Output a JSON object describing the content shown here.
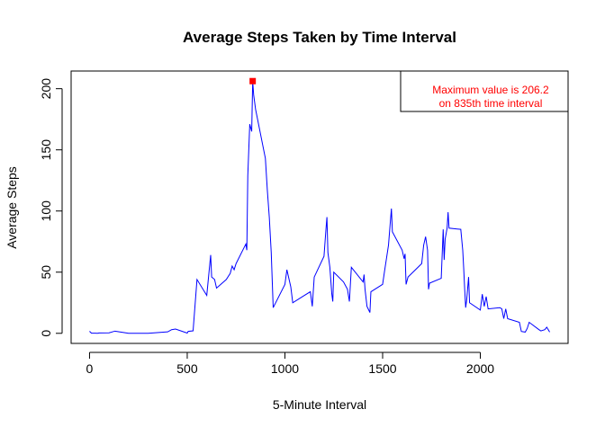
{
  "chart_data": {
    "type": "line",
    "title": "Average Steps Taken by Time Interval",
    "x_label": "5-Minute Interval",
    "y_label": "Average Steps",
    "x": [
      0,
      10,
      20,
      30,
      40,
      50,
      100,
      130,
      200,
      300,
      400,
      420,
      440,
      500,
      505,
      530,
      550,
      600,
      620,
      625,
      640,
      650,
      700,
      720,
      730,
      740,
      750,
      800,
      805,
      810,
      820,
      830,
      835,
      840,
      850,
      900,
      910,
      920,
      930,
      940,
      1000,
      1010,
      1030,
      1040,
      1100,
      1130,
      1140,
      1150,
      1200,
      1210,
      1215,
      1220,
      1230,
      1240,
      1245,
      1250,
      1300,
      1320,
      1330,
      1340,
      1400,
      1405,
      1410,
      1420,
      1435,
      1440,
      1500,
      1510,
      1530,
      1545,
      1550,
      1600,
      1610,
      1615,
      1620,
      1630,
      1700,
      1710,
      1720,
      1730,
      1735,
      1740,
      1800,
      1810,
      1815,
      1820,
      1830,
      1835,
      1840,
      1900,
      1910,
      1915,
      1920,
      1925,
      1930,
      1940,
      1945,
      2000,
      2010,
      2020,
      2030,
      2040,
      2100,
      2110,
      2120,
      2130,
      2140,
      2200,
      2210,
      2230,
      2240,
      2250,
      2300,
      2310,
      2330,
      2340,
      2355
    ],
    "values": [
      1.7,
      0.1,
      0.1,
      0.1,
      0,
      0.3,
      0.4,
      1.8,
      0,
      0,
      1.2,
      3,
      3.5,
      0.2,
      1.6,
      2,
      44,
      31,
      64,
      46,
      44,
      37,
      44,
      49,
      55,
      52,
      57,
      73,
      68,
      129,
      171,
      165,
      206.2,
      195,
      183,
      143,
      117,
      95,
      66,
      21,
      40,
      52,
      38,
      25,
      31,
      34,
      22,
      46,
      63,
      85,
      95,
      66,
      54,
      32,
      26,
      50,
      42,
      36,
      26,
      54,
      42,
      48,
      36,
      22,
      17,
      34,
      40,
      51,
      72,
      102,
      83,
      68,
      61,
      65,
      40,
      46,
      57,
      72,
      79,
      68,
      36,
      41,
      45,
      85,
      60,
      77,
      86,
      99,
      86,
      85,
      68,
      53,
      36,
      21,
      27,
      46,
      25,
      19,
      32,
      22,
      30,
      20,
      21,
      20,
      12,
      20,
      12,
      9,
      1.5,
      1,
      4,
      9,
      3,
      2,
      3,
      5,
      1
    ],
    "color": "#0000ff",
    "max_point": {
      "x": 835,
      "y": 206.2,
      "color": "#ff0000"
    },
    "annotation": [
      "Maximum value is 206.2",
      "on 835th time interval"
    ],
    "annotation_color": "#ff0000",
    "legend_position": "topright",
    "xlim": [
      -94.2,
      2449.2
    ],
    "ylim": [
      -8.248,
      214.448
    ],
    "xticks": [
      0,
      500,
      1000,
      1500,
      2000
    ],
    "yticks": [
      0,
      50,
      100,
      150,
      200
    ]
  }
}
